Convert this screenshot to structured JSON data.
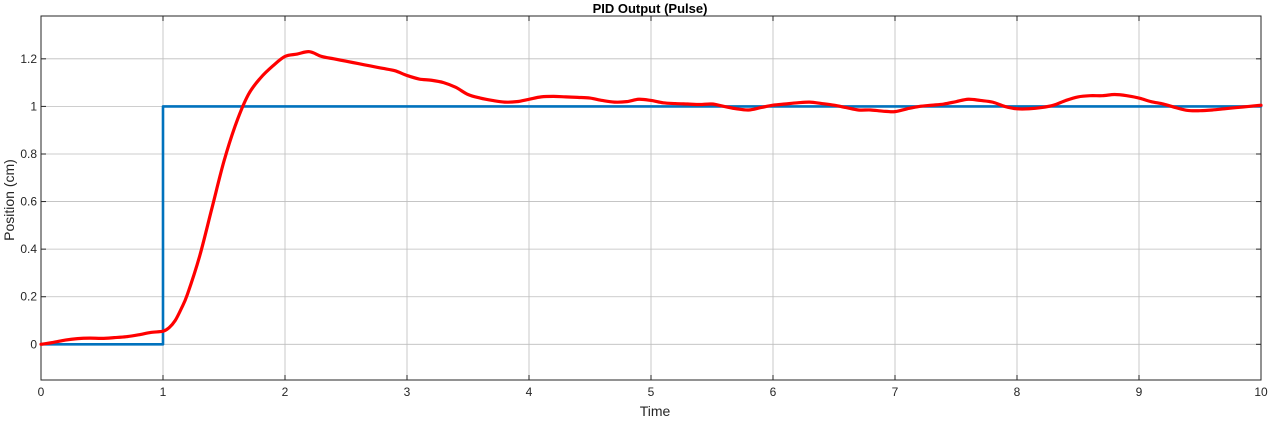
{
  "chart_data": {
    "type": "line",
    "title": "PID Output (Pulse)",
    "xlabel": "Time",
    "ylabel": "Position (cm)",
    "xlim": [
      0,
      10
    ],
    "ylim": [
      -0.15,
      1.38
    ],
    "xticks": [
      0,
      1,
      2,
      3,
      4,
      5,
      6,
      7,
      8,
      9,
      10
    ],
    "xtick_labels": [
      "0",
      "1",
      "2",
      "3",
      "4",
      "5",
      "6",
      "7",
      "8",
      "9",
      "10"
    ],
    "yticks": [
      0,
      0.2,
      0.4,
      0.6,
      0.8,
      1,
      1.2
    ],
    "ytick_labels": [
      "0",
      "0.2",
      "0.4",
      "0.6",
      "0.8",
      "1",
      "1.2"
    ],
    "grid": true,
    "legend": "none",
    "series": [
      {
        "color": "#0072BD",
        "x": [
          0,
          1,
          1,
          10
        ],
        "y": [
          0,
          0,
          1,
          1
        ]
      },
      {
        "color": "#FF0000",
        "x": [
          0,
          0.1,
          0.2,
          0.3,
          0.4,
          0.5,
          0.6,
          0.7,
          0.8,
          0.9,
          1.0,
          1.05,
          1.1,
          1.15,
          1.2,
          1.3,
          1.4,
          1.5,
          1.6,
          1.7,
          1.8,
          1.9,
          2.0,
          2.1,
          2.2,
          2.3,
          2.4,
          2.5,
          2.6,
          2.7,
          2.8,
          2.9,
          3.0,
          3.1,
          3.2,
          3.3,
          3.4,
          3.5,
          3.6,
          3.7,
          3.8,
          3.9,
          4.0,
          4.1,
          4.2,
          4.3,
          4.4,
          4.5,
          4.6,
          4.7,
          4.8,
          4.9,
          5.0,
          5.1,
          5.2,
          5.3,
          5.4,
          5.5,
          5.6,
          5.7,
          5.8,
          5.9,
          6.0,
          6.1,
          6.2,
          6.3,
          6.4,
          6.5,
          6.6,
          6.7,
          6.8,
          6.9,
          7.0,
          7.1,
          7.2,
          7.3,
          7.4,
          7.5,
          7.6,
          7.7,
          7.8,
          7.9,
          8.0,
          8.1,
          8.2,
          8.3,
          8.4,
          8.5,
          8.6,
          8.7,
          8.8,
          8.9,
          9.0,
          9.1,
          9.2,
          9.3,
          9.4,
          9.5,
          9.6,
          9.7,
          9.8,
          9.9,
          10.0
        ],
        "y": [
          0,
          0.008,
          0.018,
          0.024,
          0.026,
          0.025,
          0.028,
          0.032,
          0.04,
          0.05,
          0.055,
          0.07,
          0.1,
          0.15,
          0.21,
          0.37,
          0.57,
          0.77,
          0.93,
          1.05,
          1.12,
          1.17,
          1.21,
          1.22,
          1.23,
          1.21,
          1.2,
          1.19,
          1.18,
          1.17,
          1.16,
          1.15,
          1.13,
          1.115,
          1.11,
          1.1,
          1.08,
          1.05,
          1.035,
          1.025,
          1.018,
          1.02,
          1.03,
          1.04,
          1.042,
          1.04,
          1.038,
          1.035,
          1.025,
          1.018,
          1.02,
          1.03,
          1.025,
          1.015,
          1.012,
          1.01,
          1.008,
          1.01,
          1.0,
          0.99,
          0.985,
          0.995,
          1.005,
          1.01,
          1.015,
          1.018,
          1.012,
          1.005,
          0.995,
          0.985,
          0.985,
          0.98,
          0.978,
          0.99,
          1.0,
          1.005,
          1.01,
          1.02,
          1.03,
          1.025,
          1.018,
          1.0,
          0.99,
          0.99,
          0.995,
          1.005,
          1.025,
          1.04,
          1.045,
          1.045,
          1.05,
          1.045,
          1.035,
          1.02,
          1.01,
          0.995,
          0.983,
          0.982,
          0.985,
          0.99,
          0.995,
          1.0,
          1.005
        ]
      }
    ]
  }
}
